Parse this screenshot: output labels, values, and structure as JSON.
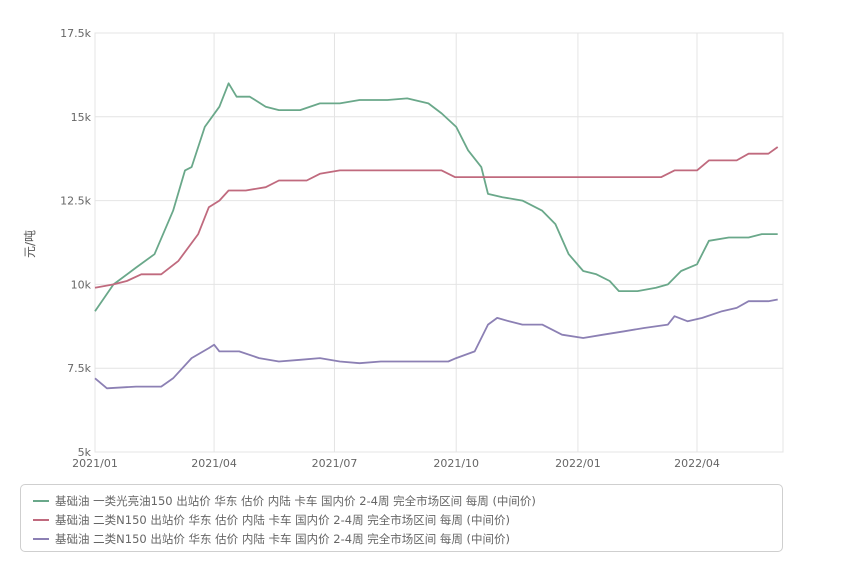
{
  "colors": {
    "series": [
      "#6aa88a",
      "#c06a7e",
      "#8c80b4"
    ],
    "grid": "#e4e4e4",
    "axis_text": "#666666"
  },
  "chart_data": {
    "type": "line",
    "ylabel": "元/吨",
    "ylim": [
      5000,
      17500
    ],
    "yticks": [
      5000,
      7500,
      10000,
      12500,
      15000,
      17500
    ],
    "ytick_labels": [
      "5k",
      "7.5k",
      "10k",
      "12.5k",
      "15k",
      "17.5k"
    ],
    "xlim": [
      "2021-01-01",
      "2022-06-05"
    ],
    "xticks": [
      "2021-01-01",
      "2021-04-01",
      "2021-07-01",
      "2021-10-01",
      "2022-01-01",
      "2022-04-01"
    ],
    "xtick_labels": [
      "2021/01",
      "2021/04",
      "2021/07",
      "2021/10",
      "2022/01",
      "2022/04"
    ],
    "grid": true,
    "legend_position": "bottom",
    "series": [
      {
        "name": "基础油 一类光亮油150 出站价 华东 估价 内陆 卡车 国内价 2-4周 完全市场区间 每周 (中间价)",
        "points": [
          [
            "2021-01-01",
            9200
          ],
          [
            "2021-01-15",
            10000
          ],
          [
            "2021-02-01",
            10500
          ],
          [
            "2021-02-15",
            10900
          ],
          [
            "2021-03-01",
            12200
          ],
          [
            "2021-03-10",
            13400
          ],
          [
            "2021-03-15",
            13500
          ],
          [
            "2021-03-25",
            14700
          ],
          [
            "2021-04-05",
            15300
          ],
          [
            "2021-04-12",
            16000
          ],
          [
            "2021-04-18",
            15600
          ],
          [
            "2021-04-28",
            15600
          ],
          [
            "2021-05-10",
            15300
          ],
          [
            "2021-05-20",
            15200
          ],
          [
            "2021-06-05",
            15200
          ],
          [
            "2021-06-20",
            15400
          ],
          [
            "2021-07-05",
            15400
          ],
          [
            "2021-07-20",
            15500
          ],
          [
            "2021-08-10",
            15500
          ],
          [
            "2021-08-25",
            15550
          ],
          [
            "2021-09-10",
            15400
          ],
          [
            "2021-09-20",
            15100
          ],
          [
            "2021-10-01",
            14700
          ],
          [
            "2021-10-10",
            14000
          ],
          [
            "2021-10-20",
            13500
          ],
          [
            "2021-10-25",
            12700
          ],
          [
            "2021-11-05",
            12600
          ],
          [
            "2021-11-20",
            12500
          ],
          [
            "2021-12-05",
            12200
          ],
          [
            "2021-12-15",
            11800
          ],
          [
            "2021-12-25",
            10900
          ],
          [
            "2022-01-05",
            10400
          ],
          [
            "2022-01-15",
            10300
          ],
          [
            "2022-01-25",
            10100
          ],
          [
            "2022-02-01",
            9800
          ],
          [
            "2022-02-15",
            9800
          ],
          [
            "2022-03-01",
            9900
          ],
          [
            "2022-03-10",
            10000
          ],
          [
            "2022-03-20",
            10400
          ],
          [
            "2022-04-01",
            10600
          ],
          [
            "2022-04-10",
            11300
          ],
          [
            "2022-04-25",
            11400
          ],
          [
            "2022-05-10",
            11400
          ],
          [
            "2022-05-20",
            11500
          ],
          [
            "2022-06-01",
            11500
          ]
        ]
      },
      {
        "name": "基础油 二类N150 出站价 华东 估价 内陆 卡车 国内价 2-4周 完全市场区间 每周 (中间价)",
        "points": [
          [
            "2021-01-01",
            9900
          ],
          [
            "2021-01-15",
            10000
          ],
          [
            "2021-01-25",
            10100
          ],
          [
            "2021-02-05",
            10300
          ],
          [
            "2021-02-20",
            10300
          ],
          [
            "2021-03-05",
            10700
          ],
          [
            "2021-03-20",
            11500
          ],
          [
            "2021-03-28",
            12300
          ],
          [
            "2021-04-05",
            12500
          ],
          [
            "2021-04-12",
            12800
          ],
          [
            "2021-04-25",
            12800
          ],
          [
            "2021-05-10",
            12900
          ],
          [
            "2021-05-20",
            13100
          ],
          [
            "2021-06-10",
            13100
          ],
          [
            "2021-06-20",
            13300
          ],
          [
            "2021-07-05",
            13400
          ],
          [
            "2021-08-01",
            13400
          ],
          [
            "2021-09-01",
            13400
          ],
          [
            "2021-09-20",
            13400
          ],
          [
            "2021-09-30",
            13200
          ],
          [
            "2021-11-01",
            13200
          ],
          [
            "2021-12-15",
            13200
          ],
          [
            "2022-01-15",
            13200
          ],
          [
            "2022-02-15",
            13200
          ],
          [
            "2022-03-05",
            13200
          ],
          [
            "2022-03-15",
            13400
          ],
          [
            "2022-04-01",
            13400
          ],
          [
            "2022-04-10",
            13700
          ],
          [
            "2022-05-01",
            13700
          ],
          [
            "2022-05-10",
            13900
          ],
          [
            "2022-05-25",
            13900
          ],
          [
            "2022-06-01",
            14100
          ]
        ]
      },
      {
        "name": "基础油 二类N150 出站价 华东 估价 内陆 卡车 国内价 2-4周 完全市场区间 每周 (中间价)",
        "points": [
          [
            "2021-01-01",
            7200
          ],
          [
            "2021-01-10",
            6900
          ],
          [
            "2021-02-01",
            6950
          ],
          [
            "2021-02-20",
            6950
          ],
          [
            "2021-03-01",
            7200
          ],
          [
            "2021-03-15",
            7800
          ],
          [
            "2021-03-28",
            8100
          ],
          [
            "2021-04-01",
            8200
          ],
          [
            "2021-04-05",
            8000
          ],
          [
            "2021-04-20",
            8000
          ],
          [
            "2021-05-05",
            7800
          ],
          [
            "2021-05-20",
            7700
          ],
          [
            "2021-06-05",
            7750
          ],
          [
            "2021-06-20",
            7800
          ],
          [
            "2021-07-05",
            7700
          ],
          [
            "2021-07-20",
            7650
          ],
          [
            "2021-08-05",
            7700
          ],
          [
            "2021-08-20",
            7700
          ],
          [
            "2021-09-05",
            7700
          ],
          [
            "2021-09-25",
            7700
          ],
          [
            "2021-10-01",
            7800
          ],
          [
            "2021-10-15",
            8000
          ],
          [
            "2021-10-25",
            8800
          ],
          [
            "2021-11-01",
            9000
          ],
          [
            "2021-11-10",
            8900
          ],
          [
            "2021-11-20",
            8800
          ],
          [
            "2021-12-05",
            8800
          ],
          [
            "2021-12-20",
            8500
          ],
          [
            "2022-01-05",
            8400
          ],
          [
            "2022-01-20",
            8500
          ],
          [
            "2022-02-05",
            8600
          ],
          [
            "2022-02-20",
            8700
          ],
          [
            "2022-03-10",
            8800
          ],
          [
            "2022-03-15",
            9050
          ],
          [
            "2022-03-25",
            8900
          ],
          [
            "2022-04-05",
            9000
          ],
          [
            "2022-04-20",
            9200
          ],
          [
            "2022-05-01",
            9300
          ],
          [
            "2022-05-10",
            9500
          ],
          [
            "2022-05-25",
            9500
          ],
          [
            "2022-06-01",
            9550
          ]
        ]
      }
    ]
  }
}
